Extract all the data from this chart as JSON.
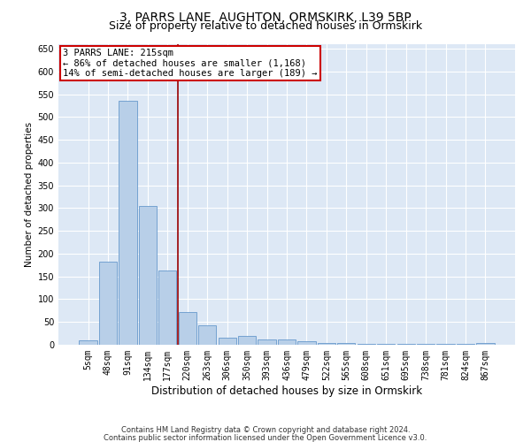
{
  "title1": "3, PARRS LANE, AUGHTON, ORMSKIRK, L39 5BP",
  "title2": "Size of property relative to detached houses in Ormskirk",
  "xlabel": "Distribution of detached houses by size in Ormskirk",
  "ylabel": "Number of detached properties",
  "categories": [
    "5sqm",
    "48sqm",
    "91sqm",
    "134sqm",
    "177sqm",
    "220sqm",
    "263sqm",
    "306sqm",
    "350sqm",
    "393sqm",
    "436sqm",
    "479sqm",
    "522sqm",
    "565sqm",
    "608sqm",
    "651sqm",
    "695sqm",
    "738sqm",
    "781sqm",
    "824sqm",
    "867sqm"
  ],
  "values": [
    10,
    183,
    535,
    305,
    163,
    72,
    42,
    15,
    20,
    11,
    11,
    8,
    3,
    3,
    2,
    1,
    1,
    1,
    1,
    1,
    3
  ],
  "bar_color": "#b8cfe8",
  "bar_edge_color": "#6699cc",
  "vline_color": "#990000",
  "annotation_text": "3 PARRS LANE: 215sqm\n← 86% of detached houses are smaller (1,168)\n14% of semi-detached houses are larger (189) →",
  "annotation_box_color": "white",
  "annotation_box_edge_color": "#cc0000",
  "ylim": [
    0,
    660
  ],
  "yticks": [
    0,
    50,
    100,
    150,
    200,
    250,
    300,
    350,
    400,
    450,
    500,
    550,
    600,
    650
  ],
  "footnote1": "Contains HM Land Registry data © Crown copyright and database right 2024.",
  "footnote2": "Contains public sector information licensed under the Open Government Licence v3.0.",
  "background_color": "#dde8f5",
  "grid_color": "white",
  "title1_fontsize": 10,
  "title2_fontsize": 9,
  "xlabel_fontsize": 8.5,
  "ylabel_fontsize": 7.5,
  "tick_fontsize": 7,
  "annot_fontsize": 7.5
}
